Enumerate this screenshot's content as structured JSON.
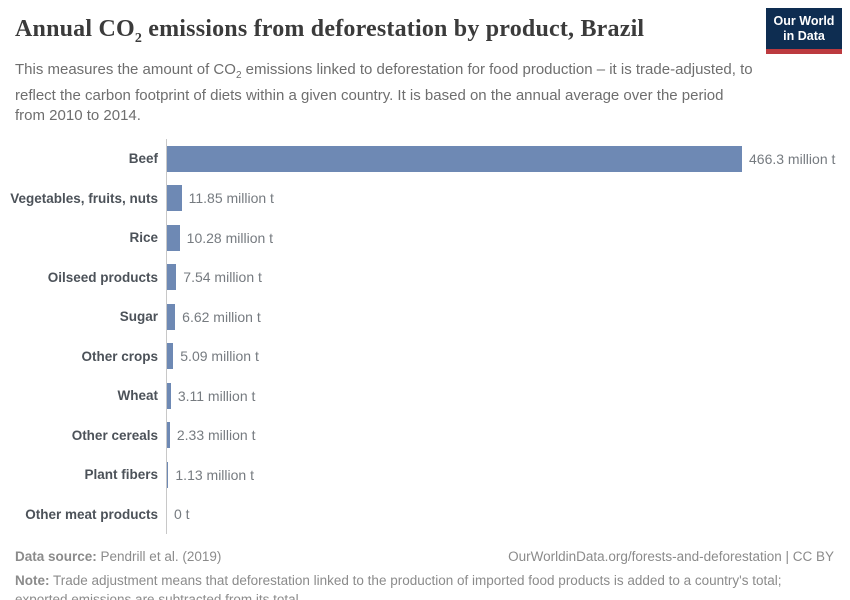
{
  "header": {
    "title_pre": "Annual CO",
    "title_sub": "2",
    "title_post": " emissions from deforestation by product, Brazil",
    "subtitle_pre": "This measures the amount of CO",
    "subtitle_sub": "2",
    "subtitle_post": " emissions linked to deforestation for food production – it is trade-adjusted, to reflect the carbon footprint of diets within a given country. It is based on the annual average over the period from 2010 to 2014.",
    "logo": {
      "line1": "Our World",
      "line2": "in Data"
    }
  },
  "chart_data": {
    "type": "bar",
    "orientation": "horizontal",
    "title": "Annual CO2 emissions from deforestation by product, Brazil",
    "unit": "million t",
    "categories": [
      "Beef",
      "Vegetables, fruits, nuts",
      "Rice",
      "Oilseed products",
      "Sugar",
      "Other crops",
      "Wheat",
      "Other cereals",
      "Plant fibers",
      "Other meat products"
    ],
    "values": [
      466.3,
      11.85,
      10.28,
      7.54,
      6.62,
      5.09,
      3.11,
      2.33,
      1.13,
      0
    ],
    "value_labels": [
      "466.3 million t",
      "11.85 million t",
      "10.28 million t",
      "7.54 million t",
      "6.62 million t",
      "5.09 million t",
      "3.11 million t",
      "2.33 million t",
      "1.13 million t",
      "0 t"
    ],
    "xlim": [
      0,
      466.3
    ],
    "bar_color": "#6e89b4",
    "axis_line_color": "#c8c8c8",
    "grid": false,
    "legend": "none"
  },
  "footer": {
    "data_source_label": "Data source:",
    "data_source_text": " Pendrill et al. (2019)",
    "credit": "OurWorldinData.org/forests-and-deforestation | CC BY",
    "note_label": "Note:",
    "note_text": " Trade adjustment means that deforestation linked to the production of imported food products is added to a country's total; exported emissions are subtracted from its total."
  },
  "colors": {
    "bar": "#6e89b4",
    "logo_navy": "#0e2d51",
    "logo_red": "#bc3a3f",
    "title_text": "#3b3b3b",
    "subtitle_text": "#6e6e6e",
    "category_text": "#4c5259",
    "value_text": "#767b80",
    "footer_text": "#8b8b8b"
  }
}
